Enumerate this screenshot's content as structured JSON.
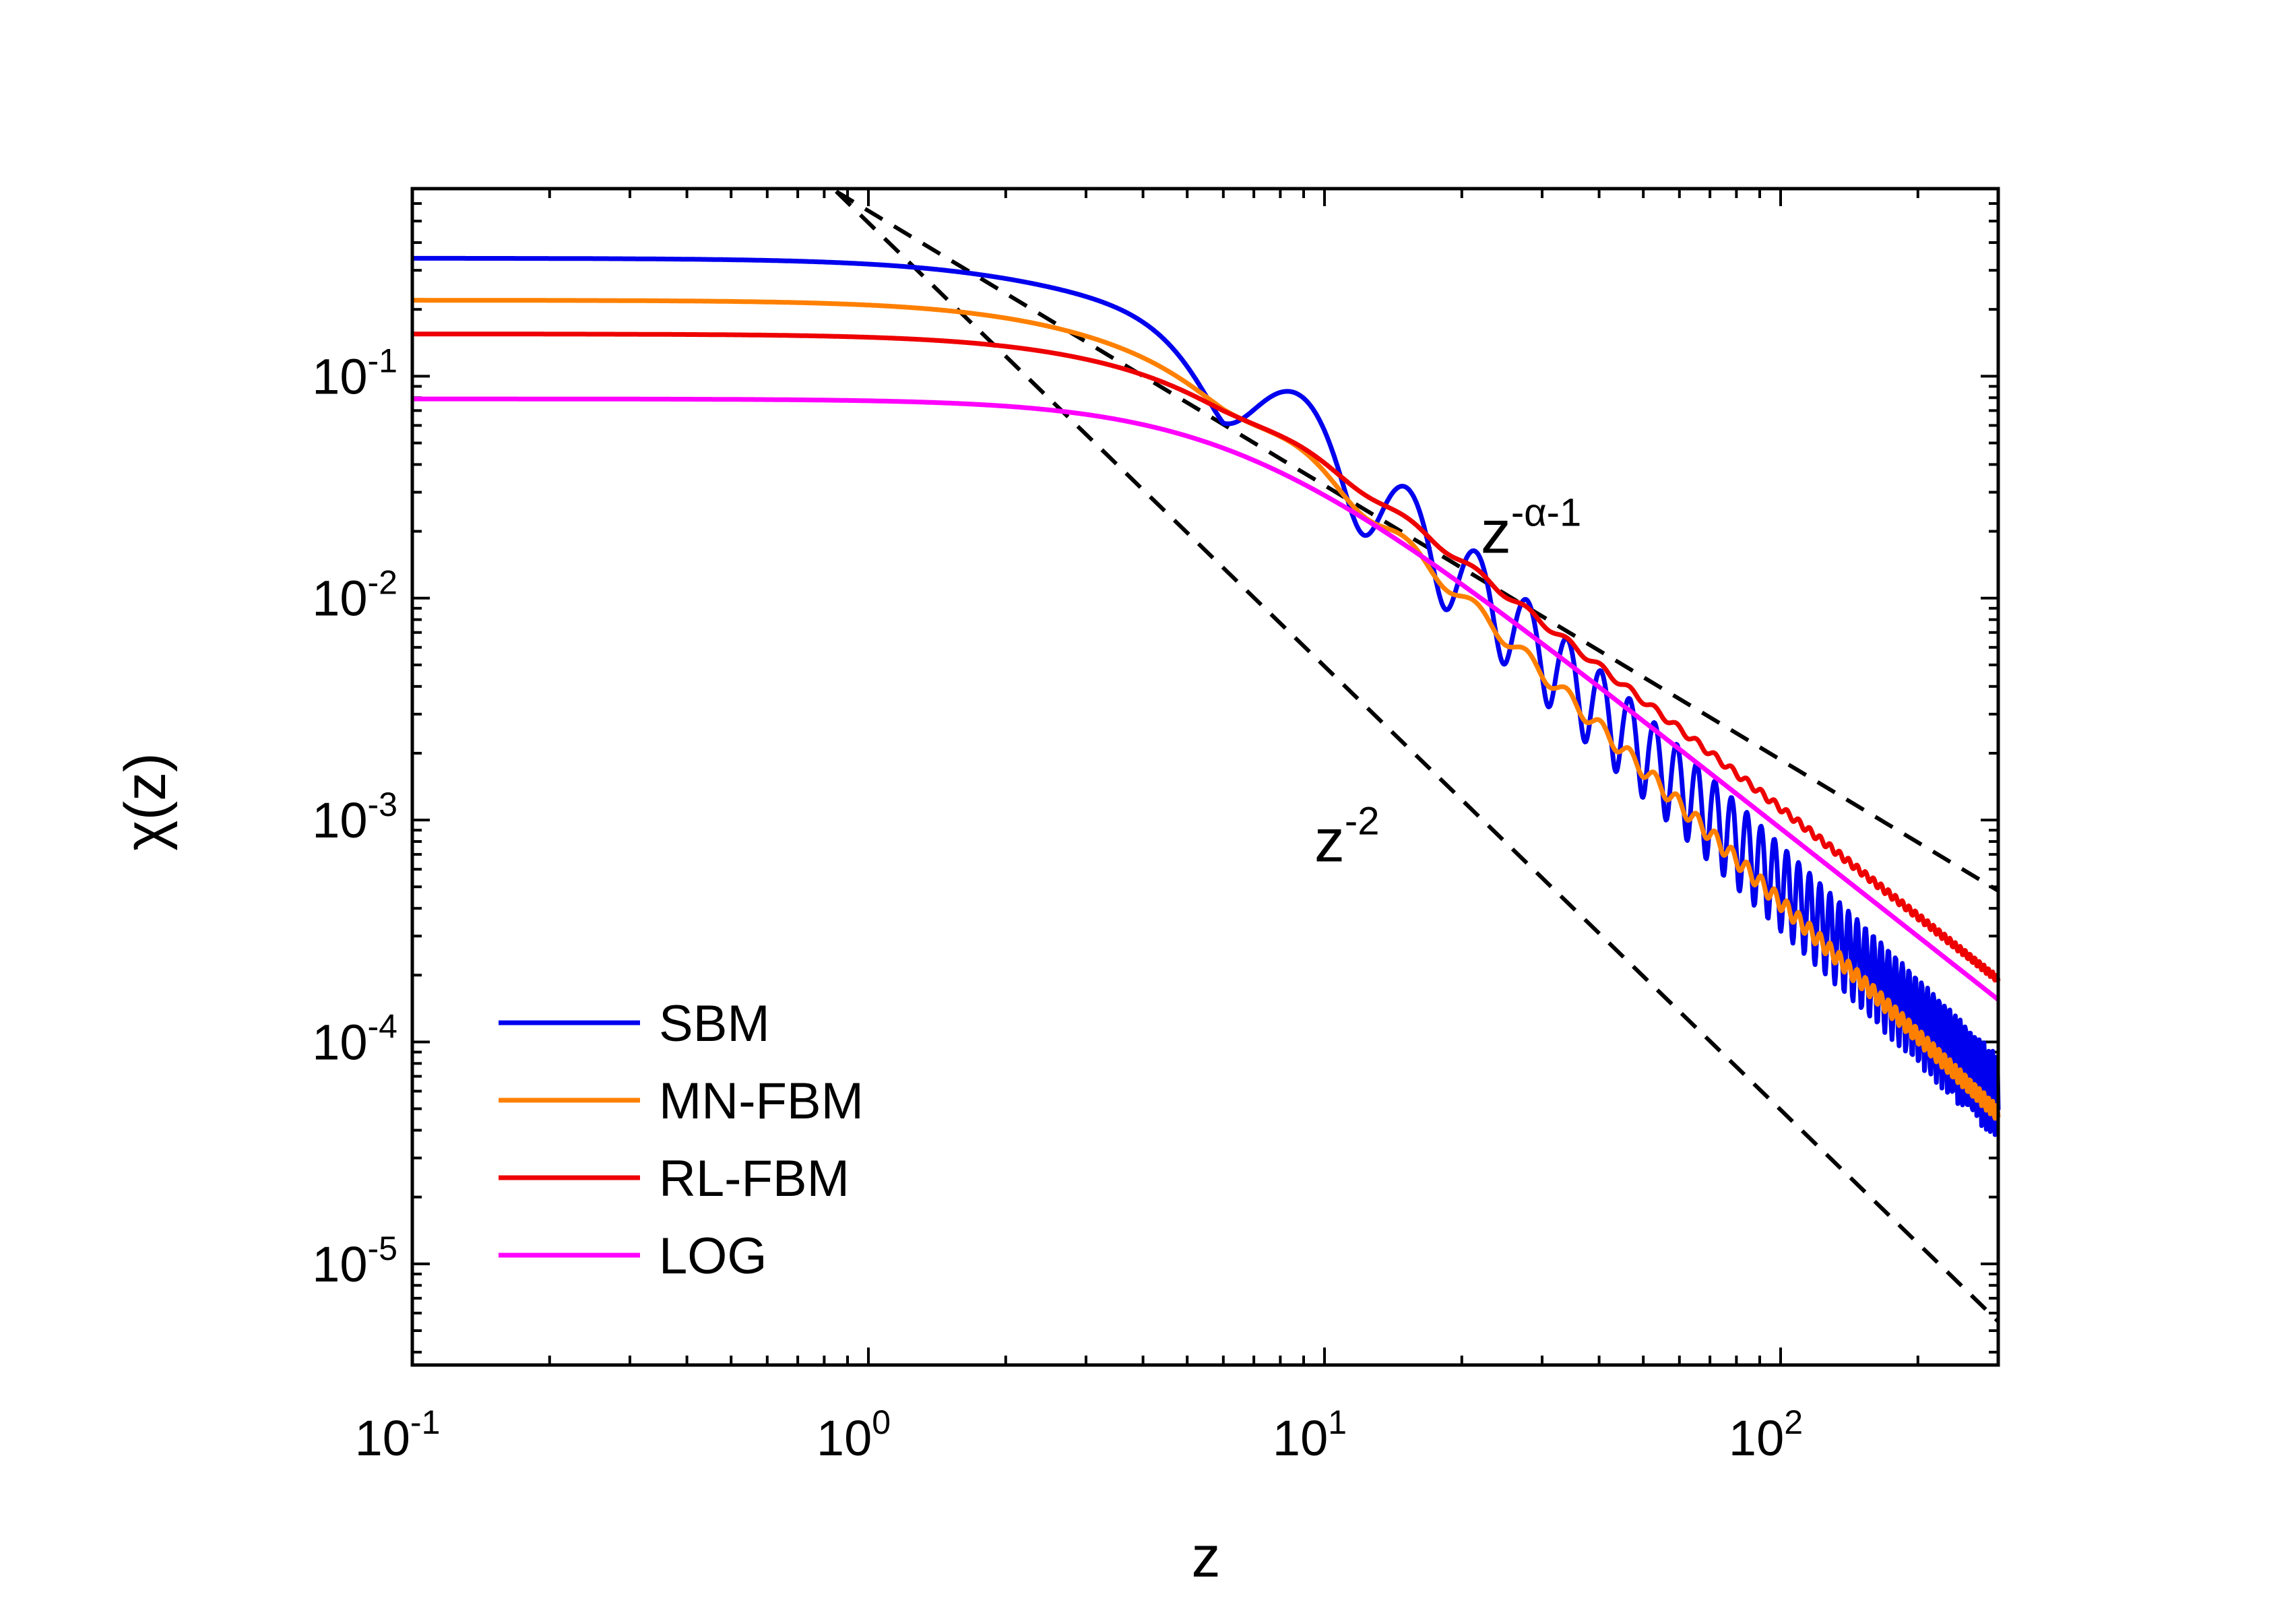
{
  "chart_data": {
    "type": "line",
    "title": "",
    "xlabel": "z",
    "ylabel": "χ(z)",
    "xscale": "log",
    "yscale": "log",
    "xlim": [
      0.1,
      300
    ],
    "ylim": [
      3.5e-06,
      0.7
    ],
    "x_ticks": [
      {
        "base": "10",
        "exp": "-1",
        "value": 0.1
      },
      {
        "base": "10",
        "exp": "0",
        "value": 1
      },
      {
        "base": "10",
        "exp": "1",
        "value": 10
      },
      {
        "base": "10",
        "exp": "2",
        "value": 100
      }
    ],
    "y_ticks": [
      {
        "base": "10",
        "exp": "-1",
        "value": 0.1
      },
      {
        "base": "10",
        "exp": "-2",
        "value": 0.01
      },
      {
        "base": "10",
        "exp": "-3",
        "value": 0.001
      },
      {
        "base": "10",
        "exp": "-4",
        "value": 0.0001
      },
      {
        "base": "10",
        "exp": "-5",
        "value": 1e-05
      }
    ],
    "legend_position": "bottom-left",
    "series": [
      {
        "name": "SBM",
        "color": "#0000ee",
        "A": 0.34,
        "z0": 4.0,
        "p": 2,
        "oscillation_amplitude": 0.42
      },
      {
        "name": "MN-FBM",
        "color": "#ff8000",
        "A": 0.22,
        "z0": 4.4,
        "p": 2,
        "oscillation_amplitude": 0.08
      },
      {
        "name": "RL-FBM",
        "color": "#ee0000",
        "A": 0.155,
        "z0": 4.8,
        "p": 1.62,
        "oscillation_amplitude": 0.035
      },
      {
        "name": "LOG",
        "color": "#ff00ff",
        "A": 0.079,
        "z0": 6.4,
        "p": 1.62,
        "oscillation_amplitude": 0
      }
    ],
    "reference_lines": [
      {
        "name": "z^(-α-1)",
        "x": [
          0.85,
          300
        ],
        "y": [
          0.68,
          0.00048
        ],
        "style": "dashed",
        "color": "#000000"
      },
      {
        "name": "z^(-2)",
        "x": [
          0.85,
          300
        ],
        "y": [
          0.68,
          5.5e-06
        ],
        "style": "dashed",
        "color": "#000000"
      }
    ],
    "annotations": [
      {
        "base": "z",
        "exp": "-α-1",
        "x": 22,
        "y": 0.016
      },
      {
        "base": "z",
        "exp": "-2",
        "x": 9.5,
        "y": 0.00065
      }
    ]
  }
}
